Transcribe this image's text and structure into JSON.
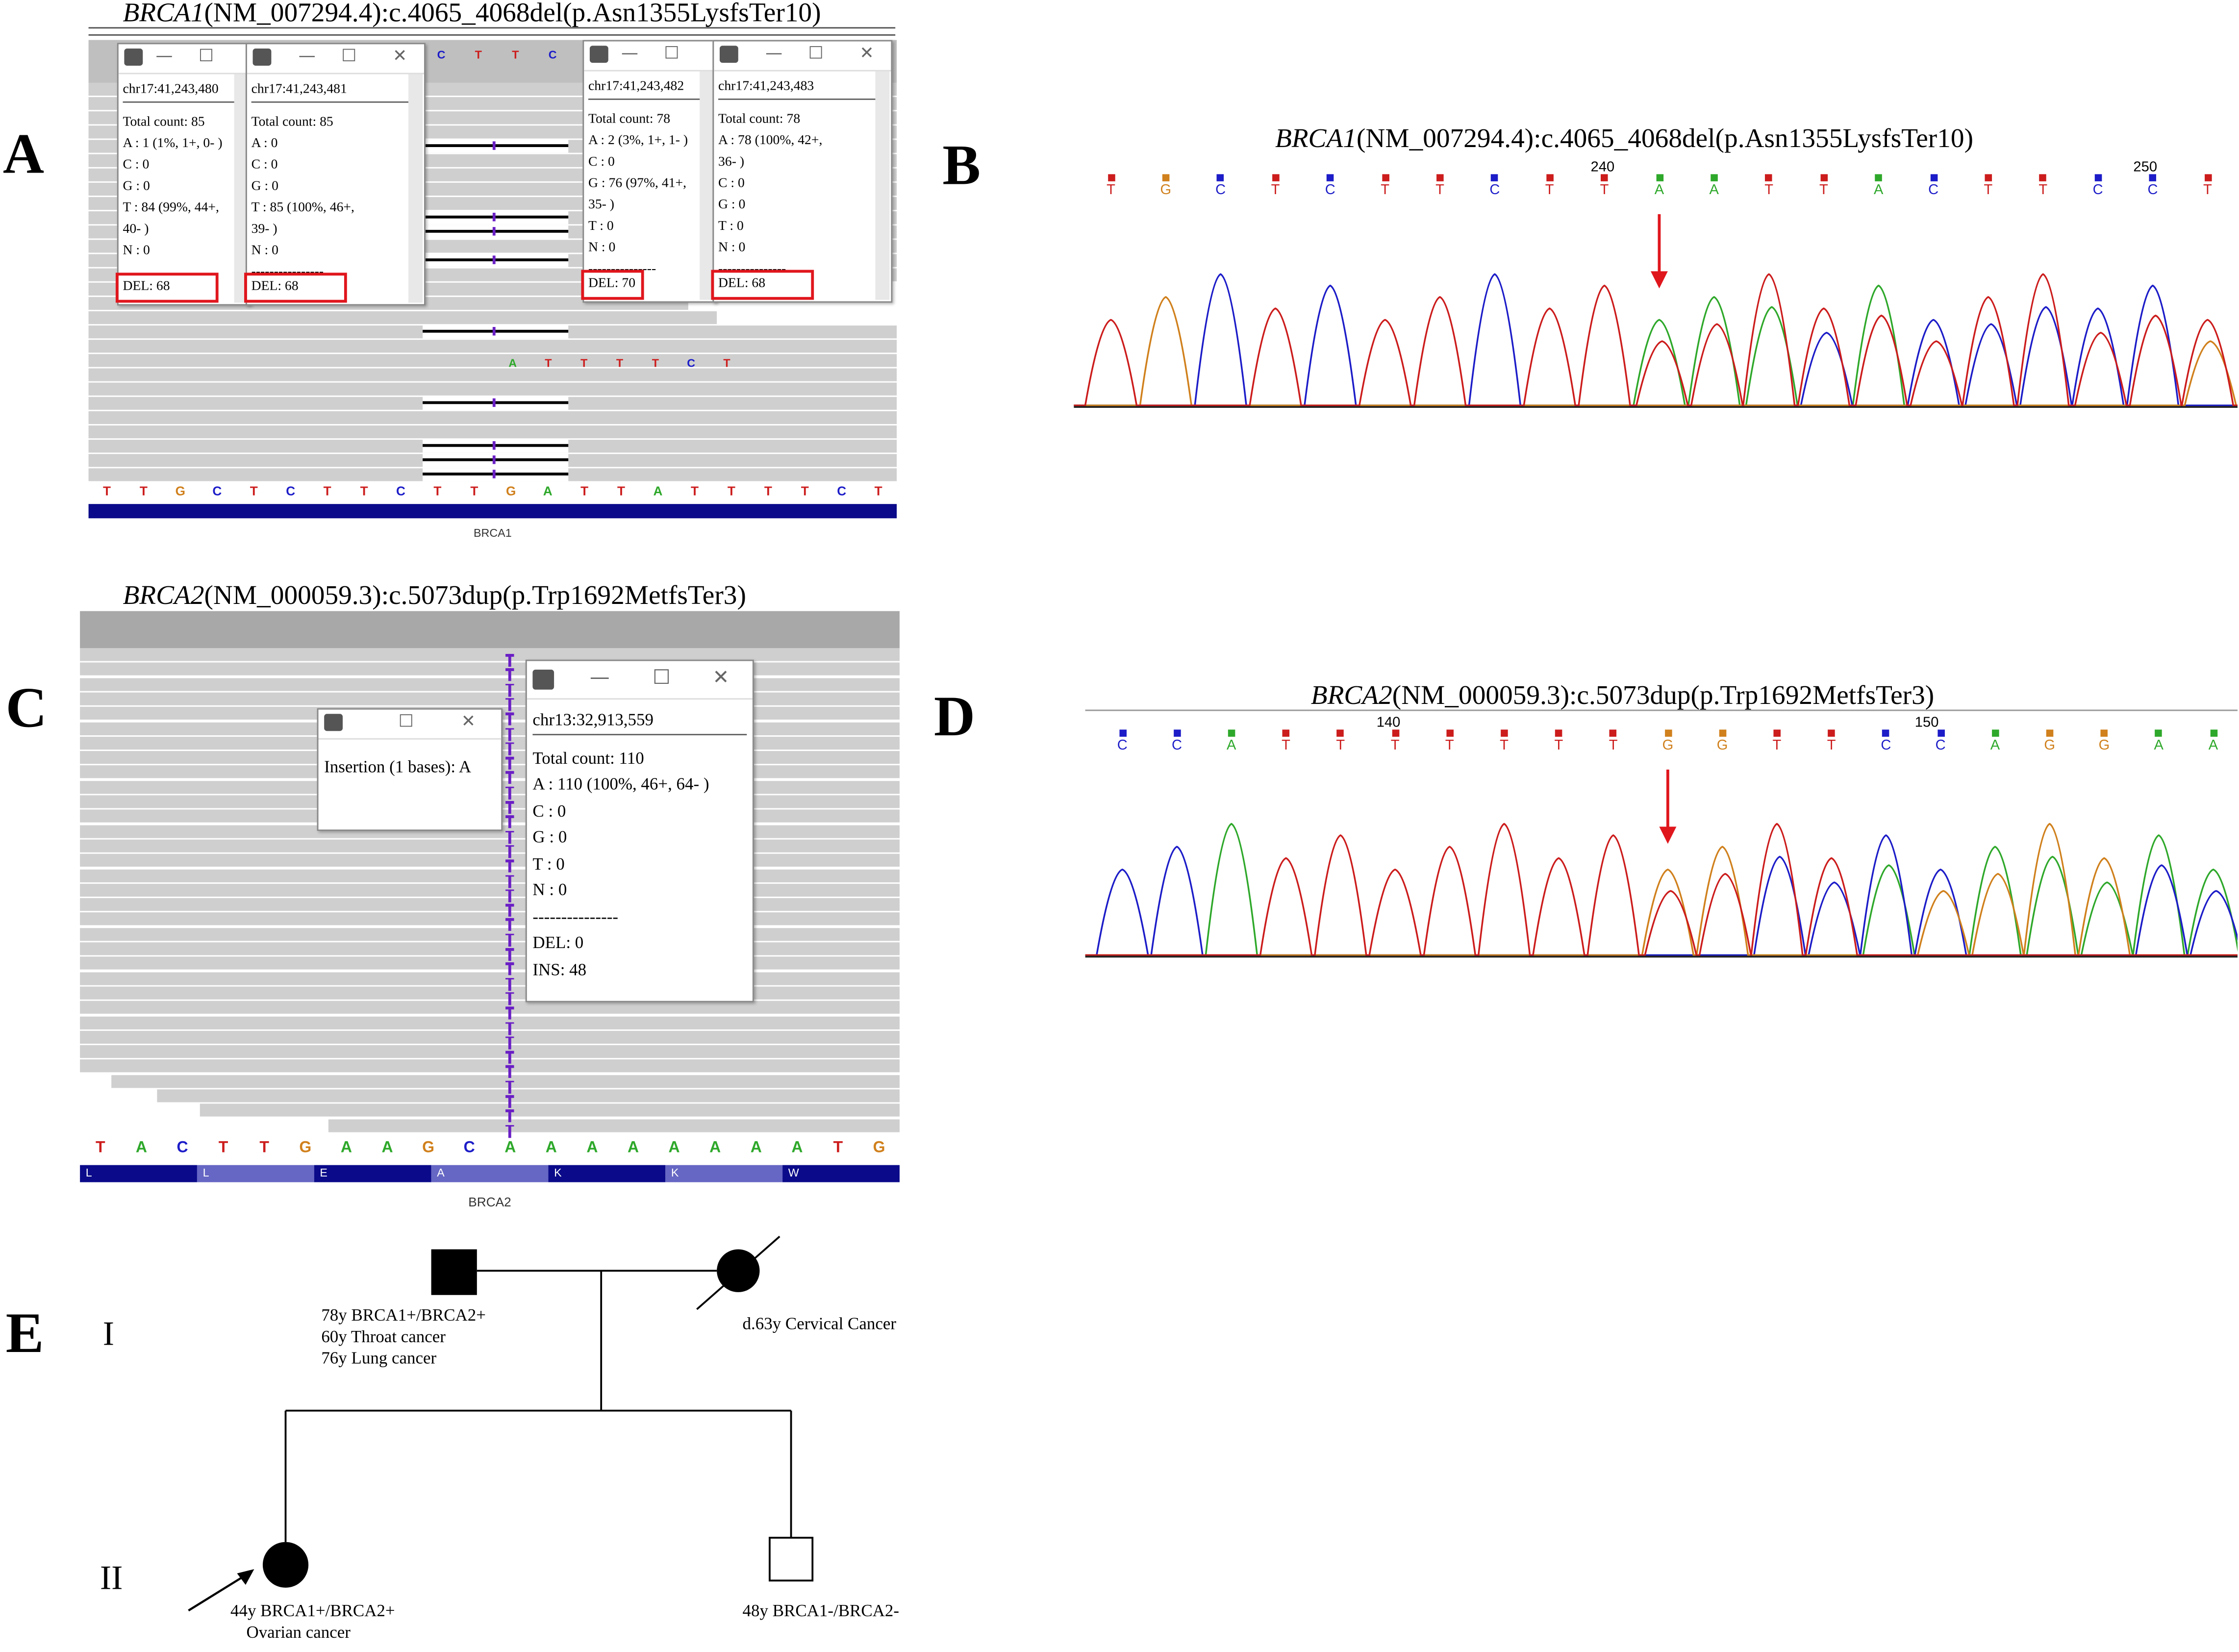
{
  "colors": {
    "A": "#2ea82a",
    "C": "#1c1cc8",
    "G": "#d0801c",
    "T": "#cc1c1c",
    "deletion_box": "#e0161d",
    "arrow": "#e0161d",
    "insertion": "#6a1fc4",
    "gene_track": "#0a0a8a"
  },
  "panel_A": {
    "letter": "A",
    "title_gene": "BRCA1",
    "title_rest": "(NM_007294.4):c.4065_4068del(p.Asn1355LysfsTer10)",
    "popups": [
      {
        "pos": "chr17:41,243,480",
        "total": "Total count: 85",
        "lines": [
          "A : 1 (1%, 1+, 0- )",
          "C : 0",
          "G : 0",
          "T : 84 (99%, 44+,",
          "40- )",
          "N : 0"
        ],
        "del": "DEL: 68"
      },
      {
        "pos": "chr17:41,243,481",
        "total": "Total count: 85",
        "lines": [
          "A : 0",
          "C : 0",
          "G : 0",
          "T : 85 (100%, 46+,",
          "39- )",
          "N : 0",
          "----------------"
        ],
        "del": "DEL: 68"
      },
      {
        "pos": "chr17:41,243,482",
        "total": "Total count: 78",
        "lines": [
          "A : 2 (3%, 1+, 1- )",
          "C : 0",
          "G : 76 (97%, 41+,",
          "35- )",
          "T : 0",
          "N : 0",
          "---------------"
        ],
        "del": "DEL: 70"
      },
      {
        "pos": "chr17:41,243,483",
        "total": "Total count: 78",
        "lines": [
          "A : 78 (100%, 42+,",
          "36- )",
          "C : 0",
          "G : 0",
          "T : 0",
          "N : 0",
          "---------------"
        ],
        "del": "DEL: 68"
      }
    ],
    "top_bases": [
      "C",
      "T",
      "T",
      "C"
    ],
    "read_bases": [
      "A",
      "T",
      "T",
      "T",
      "T",
      "C",
      "T"
    ],
    "reference": [
      "T",
      "T",
      "G",
      "C",
      "T",
      "C",
      "T",
      "T",
      "C",
      "T",
      "T",
      "G",
      "A",
      "T",
      "T",
      "A",
      "T",
      "T",
      "T",
      "T",
      "C",
      "T"
    ],
    "gene_label": "BRCA1"
  },
  "panel_B": {
    "letter": "B",
    "title_gene": "BRCA1",
    "title_rest": "(NM_007294.4):c.4065_4068del(p.Asn1355LysfsTer10)",
    "bases": [
      "T",
      "G",
      "C",
      "T",
      "C",
      "T",
      "T",
      "C",
      "T",
      "T",
      "A",
      "A",
      "T",
      "T",
      "A",
      "C",
      "T",
      "T",
      "C",
      "C",
      "T"
    ],
    "ruler": [
      "240",
      "250"
    ]
  },
  "panel_C": {
    "letter": "C",
    "title_gene": "BRCA2",
    "title_rest": "(NM_000059.3):c.5073dup(p.Trp1692MetfsTer3)",
    "insertion_text": "Insertion (1 bases): A",
    "popup": {
      "pos": "chr13:32,913,559",
      "total": "Total count: 110",
      "lines": [
        "A : 110 (100%, 46+, 64- )",
        "C : 0",
        "G : 0",
        "T : 0",
        "N : 0",
        "---------------",
        "DEL: 0",
        "INS: 48"
      ]
    },
    "reference": [
      "T",
      "A",
      "C",
      "T",
      "T",
      "G",
      "A",
      "A",
      "G",
      "C",
      "A",
      "A",
      "A",
      "A",
      "A",
      "A",
      "A",
      "A",
      "T",
      "G"
    ],
    "amino_acids": [
      "L",
      "L",
      "E",
      "A",
      "K",
      "K",
      "W"
    ],
    "gene_label": "BRCA2"
  },
  "panel_D": {
    "letter": "D",
    "title_gene": "BRCA2",
    "title_rest": "(NM_000059.3):c.5073dup(p.Trp1692MetfsTer3)",
    "bases": [
      "C",
      "C",
      "A",
      "T",
      "T",
      "T",
      "T",
      "T",
      "T",
      "T",
      "G",
      "G",
      "T",
      "T",
      "C",
      "C",
      "A",
      "G",
      "G",
      "A",
      "A"
    ],
    "ruler": [
      "140",
      "150"
    ]
  },
  "panel_E": {
    "letter": "E",
    "gen_I": "I",
    "gen_II": "II",
    "father_lines": [
      "78y BRCA1+/BRCA2+",
      "60y Throat cancer",
      "76y  Lung cancer"
    ],
    "mother_text": "d.63y Cervical Cancer",
    "proband_lines": [
      "44y BRCA1+/BRCA2+",
      "Ovarian cancer"
    ],
    "brother_text": "48y BRCA1-/BRCA2-"
  }
}
